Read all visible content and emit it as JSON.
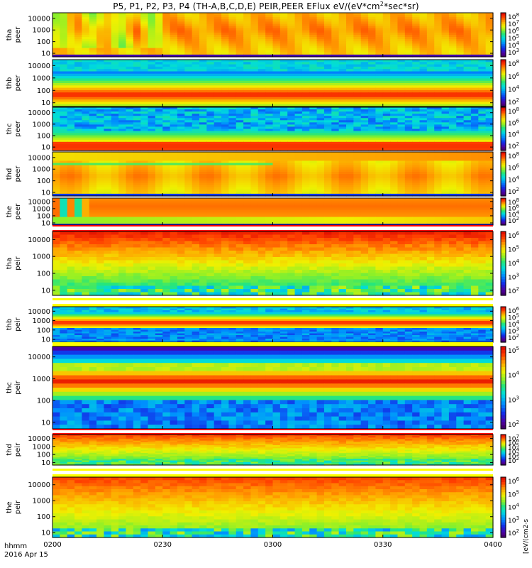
{
  "title_text": "P5, P1, P2, P3, P4 (TH-A,B,C,D,E) PEIR,PEER EFlux eV/(eV*cm",
  "title_sup": "2",
  "title_tail": "*sec*sr)",
  "time_axis": {
    "unit_label": "hhmm",
    "date_label": "2016 Apr 15",
    "ticks": [
      "0200",
      "0230",
      "0300",
      "0330",
      "0400"
    ]
  },
  "colorbar_label_fragment": "[eV/(cm2-s",
  "chart_data": {
    "type": "heatmap",
    "x_range": [
      "0200",
      "0400"
    ],
    "y_scale": "log",
    "y_unit": "eV",
    "panels": [
      {
        "id": "tha-peer",
        "probe_label": "tha",
        "species_label": "peer",
        "y_ticks": [
          "10000",
          "1000",
          "100",
          "10"
        ],
        "y_range": [
          5,
          30000
        ],
        "c_ticks": [
          "10^8",
          "10^7",
          "10^6",
          "10^5",
          "10^4",
          "10^3"
        ],
        "profile": "tha_peer"
      },
      {
        "id": "thb-peer",
        "probe_label": "thb",
        "species_label": "peer",
        "y_ticks": [
          "10000",
          "1000",
          "100",
          "10"
        ],
        "y_range": [
          5,
          30000
        ],
        "c_ticks": [
          "10^8",
          "10^6",
          "10^4",
          "10^2"
        ],
        "profile": "thb_peer"
      },
      {
        "id": "thc-peer",
        "probe_label": "thc",
        "species_label": "peer",
        "y_ticks": [
          "10000",
          "1000",
          "100",
          "10"
        ],
        "y_range": [
          5,
          30000
        ],
        "c_ticks": [
          "10^8",
          "10^6",
          "10^4",
          "10^2"
        ],
        "profile": "thc_peer"
      },
      {
        "id": "thd-peer",
        "probe_label": "thd",
        "species_label": "peer",
        "y_ticks": [
          "10000",
          "1000",
          "100",
          "10"
        ],
        "y_range": [
          5,
          30000
        ],
        "c_ticks": [
          "10^8",
          "10^6",
          "10^4",
          "10^2"
        ],
        "profile": "thd_peer"
      },
      {
        "id": "the-peer",
        "probe_label": "the",
        "species_label": "peer",
        "y_ticks": [
          "10000",
          "1000",
          "100",
          "10"
        ],
        "y_range": [
          5,
          30000
        ],
        "c_ticks": [
          "10^8",
          "10^6",
          "10^4",
          "10^2"
        ],
        "profile": "the_peer"
      },
      {
        "id": "tha-peir",
        "probe_label": "tha",
        "species_label": "peir",
        "y_ticks": [
          "10000",
          "1000",
          "100",
          "10"
        ],
        "y_range": [
          5,
          30000
        ],
        "c_ticks": [
          "10^6",
          "10^5",
          "10^4",
          "10^3",
          "10^2"
        ],
        "profile": "tha_peir"
      },
      {
        "id": "thb-peir",
        "probe_label": "thb",
        "species_label": "peir",
        "y_ticks": [
          "10000",
          "1000",
          "100",
          "10"
        ],
        "y_range": [
          5,
          30000
        ],
        "c_ticks": [
          "10^6",
          "10^5",
          "10^4",
          "10^3",
          "10^2"
        ],
        "profile": "thb_peir"
      },
      {
        "id": "thc-peir",
        "probe_label": "thc",
        "species_label": "peir",
        "y_ticks": [
          "10000",
          "1000",
          "100",
          "10"
        ],
        "y_range": [
          5,
          30000
        ],
        "c_ticks": [
          "10^5",
          "10^4",
          "10^3",
          "10^2"
        ],
        "profile": "thc_peir"
      },
      {
        "id": "thd-peir",
        "probe_label": "thd",
        "species_label": "peir",
        "y_ticks": [
          "10000",
          "1000",
          "100",
          "10"
        ],
        "y_range": [
          5,
          30000
        ],
        "c_ticks": [
          "10^7",
          "10^6",
          "10^5",
          "10^4",
          "10^3",
          "10^2"
        ],
        "profile": "thd_peir"
      },
      {
        "id": "the-peir",
        "probe_label": "the",
        "species_label": "peir",
        "y_ticks": [
          "10000",
          "1000",
          "100",
          "10"
        ],
        "y_range": [
          5,
          30000
        ],
        "c_ticks": [
          "10^6",
          "10^5",
          "10^4",
          "10^3",
          "10^2"
        ],
        "profile": "the_peir"
      }
    ]
  }
}
